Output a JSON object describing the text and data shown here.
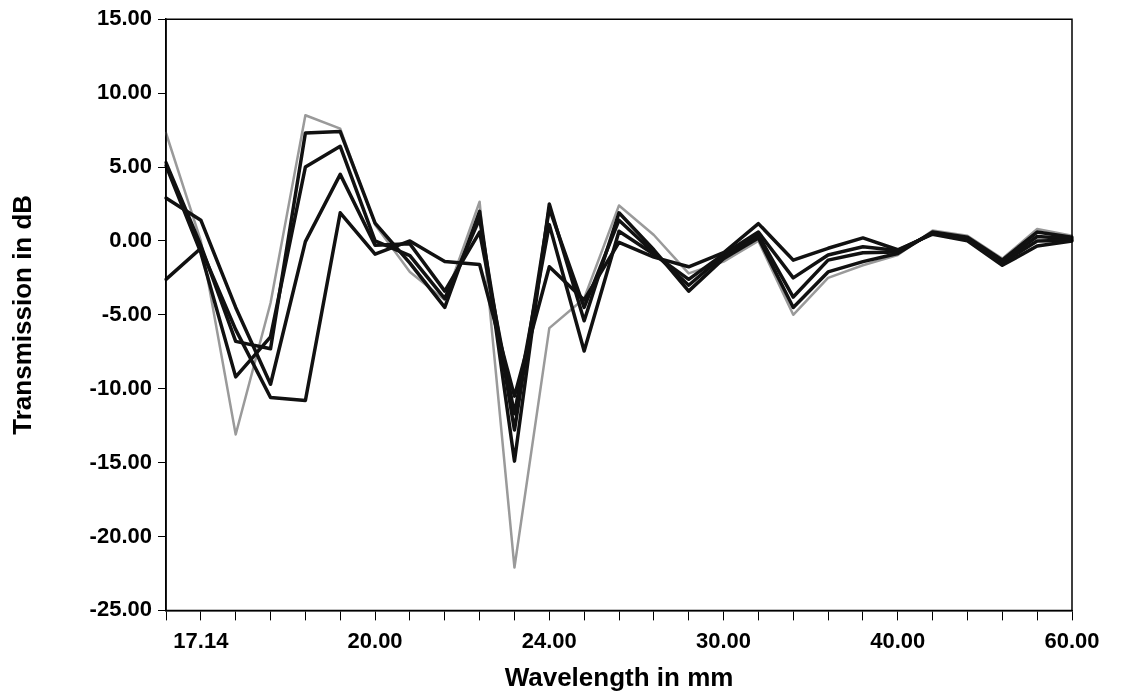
{
  "chart_data": {
    "type": "line",
    "xlabel": "Wavelength in mm",
    "ylabel": "Transmission in dB",
    "categories": [
      null,
      "17.14",
      null,
      null,
      null,
      null,
      "20.00",
      null,
      null,
      null,
      null,
      "24.00",
      null,
      null,
      null,
      null,
      "30.00",
      null,
      null,
      null,
      null,
      "40.00",
      null,
      null,
      null,
      null,
      "60.00"
    ],
    "ylim": [
      -25,
      15
    ],
    "yticks": [
      {
        "value": -25,
        "label": "-25.00"
      },
      {
        "value": -20,
        "label": "-20.00"
      },
      {
        "value": -15,
        "label": "-15.00"
      },
      {
        "value": -10,
        "label": "-10.00"
      },
      {
        "value": -5,
        "label": "-5.00"
      },
      {
        "value": 0,
        "label": "0.00"
      },
      {
        "value": 5,
        "label": "5.00"
      },
      {
        "value": 10,
        "label": "10.00"
      },
      {
        "value": 15,
        "label": "15.00"
      }
    ],
    "grid": false,
    "legend": false,
    "marker": "none",
    "line_style": "solid",
    "series": [
      {
        "color": "#9a9a9a",
        "values": [
          7.3,
          0.0,
          -13.1,
          -4.2,
          8.5,
          7.6,
          1.1,
          -2.1,
          -4.0,
          2.65,
          -22.1,
          -5.9,
          -3.9,
          2.4,
          0.4,
          -2.2,
          -1.4,
          0.0,
          -5.0,
          -2.5,
          -1.65,
          -0.95,
          0.7,
          0.35,
          -1.2,
          0.8,
          0.35
        ]
      },
      {
        "color": "#111111",
        "values": [
          5.3,
          -0.3,
          -6.8,
          -7.3,
          7.3,
          7.4,
          1.2,
          -1.5,
          -4.5,
          2.0,
          -14.9,
          2.5,
          -5.4,
          1.9,
          -0.6,
          -3.4,
          -1.2,
          0.2,
          -4.5,
          -2.1,
          -1.4,
          -0.85,
          0.6,
          0.25,
          -1.3,
          0.6,
          0.25
        ]
      },
      {
        "color": "#111111",
        "values": [
          5.1,
          -0.8,
          -9.2,
          -6.5,
          5.0,
          6.4,
          0.0,
          -1.0,
          -3.9,
          1.5,
          -12.8,
          2.2,
          -4.5,
          1.4,
          -0.8,
          -3.0,
          -1.0,
          0.4,
          -3.8,
          -1.3,
          -0.8,
          -0.75,
          0.55,
          0.15,
          -1.4,
          0.3,
          0.15
        ]
      },
      {
        "color": "#111111",
        "values": [
          2.9,
          1.4,
          -4.5,
          -9.7,
          -0.05,
          4.5,
          -0.3,
          -0.2,
          -3.4,
          0.6,
          -11.7,
          1.1,
          -7.45,
          0.65,
          -0.9,
          -2.6,
          -0.9,
          0.6,
          -2.5,
          -0.95,
          -0.4,
          -0.65,
          0.5,
          0.1,
          -1.5,
          0.0,
          0.05
        ]
      },
      {
        "color": "#111111",
        "values": [
          -2.6,
          -0.5,
          -6.0,
          -10.6,
          -10.8,
          1.9,
          -0.9,
          0.0,
          -1.4,
          -1.6,
          -10.5,
          -1.75,
          -4.0,
          -0.1,
          -1.1,
          -1.75,
          -0.8,
          1.17,
          -1.3,
          -0.5,
          0.2,
          -0.6,
          0.45,
          0.0,
          -1.65,
          -0.35,
          0.0
        ]
      }
    ]
  }
}
